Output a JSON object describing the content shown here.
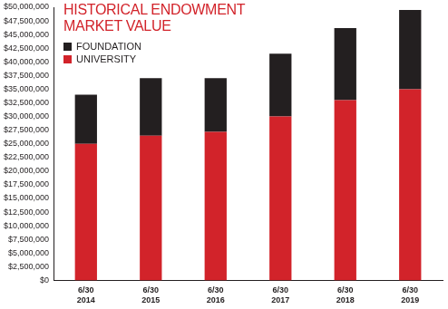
{
  "chart_data": {
    "type": "bar",
    "title": "HISTORICAL ENDOWMENT MARKET VALUE",
    "title_color": "#d2232a",
    "stacked": true,
    "grid": false,
    "legend": "top-left",
    "categories": [
      "6/30 2014",
      "6/30 2015",
      "6/30 2016",
      "6/30 2017",
      "6/30 2018",
      "6/30 2019"
    ],
    "series": [
      {
        "name": "UNIVERSITY",
        "color": "#d2232a",
        "values": [
          25000000,
          26500000,
          27200000,
          30000000,
          33000000,
          35000000
        ]
      },
      {
        "name": "FOUNDATION",
        "color": "#231f20",
        "values": [
          9000000,
          10500000,
          9800000,
          11500000,
          13200000,
          14500000
        ]
      }
    ],
    "ylim": [
      0,
      50000000
    ],
    "yticks": [
      {
        "value": 0,
        "label": "$0"
      },
      {
        "value": 2500000,
        "label": "$2,500,000"
      },
      {
        "value": 5000000,
        "label": "$5,000,000"
      },
      {
        "value": 7500000,
        "label": "$7,500,000"
      },
      {
        "value": 10000000,
        "label": "$10,000,000"
      },
      {
        "value": 12500000,
        "label": "$12,500,000"
      },
      {
        "value": 15000000,
        "label": "$15,000,000"
      },
      {
        "value": 17500000,
        "label": "$17,500,000"
      },
      {
        "value": 20000000,
        "label": "$20,000,000"
      },
      {
        "value": 22500000,
        "label": "$22,500,000"
      },
      {
        "value": 25000000,
        "label": "$25,000,000"
      },
      {
        "value": 27500000,
        "label": "$27,500,000"
      },
      {
        "value": 30000000,
        "label": "$30,000,000"
      },
      {
        "value": 32500000,
        "label": "$32,500,000"
      },
      {
        "value": 35000000,
        "label": "$35,000,000"
      },
      {
        "value": 37500000,
        "label": "$37,500,000"
      },
      {
        "value": 40000000,
        "label": "$40,000,000"
      },
      {
        "value": 42500000,
        "label": "$42,500,000"
      },
      {
        "value": 45000000,
        "label": "$45,000,000"
      },
      {
        "value": 47500000,
        "label": "$47,500,000"
      },
      {
        "value": 50000000,
        "label": "$50,000,000"
      }
    ]
  }
}
